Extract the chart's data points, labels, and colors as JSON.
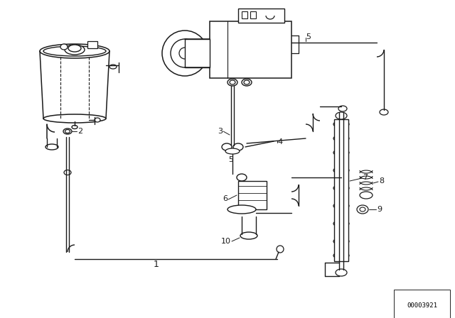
{
  "bg_color": "#ffffff",
  "line_color": "#1a1a1a",
  "diagram_id": "00003921",
  "fig_width": 6.4,
  "fig_height": 4.48,
  "dpi": 100
}
